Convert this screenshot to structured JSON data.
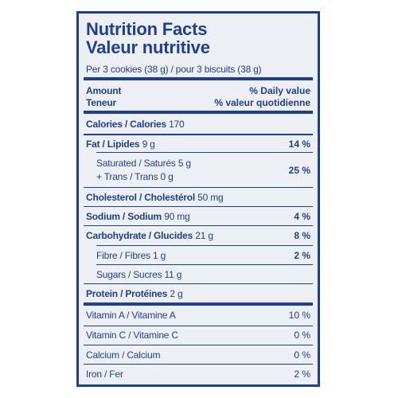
{
  "header": {
    "title": "Nutrition Facts",
    "title_fr": "Valeur nutritive",
    "serving": "Per 3 cookies (38 g) / pour 3 biscuits (38 g)"
  },
  "columns": {
    "amount": "Amount",
    "amount_fr": "Teneur",
    "dv": "% Daily value",
    "dv_fr": "% valeur quotidienne"
  },
  "rows": [
    {
      "name": "Calories / Calories",
      "amount": "170"
    },
    {
      "name": "Fat / Lipides",
      "amount": "9 g",
      "dv": "14 %"
    },
    {
      "name": "Saturated / Saturés 5 g",
      "name2": "+ Trans / Trans 0 g",
      "dv": "25 %"
    },
    {
      "name": "Cholesterol / Cholestérol",
      "amount": "50 mg"
    },
    {
      "name": "Sodium / Sodium",
      "amount": "90 mg",
      "dv": "4 %"
    },
    {
      "name": "Carbohydrate / Glucides",
      "amount": "21 g",
      "dv": "8 %"
    },
    {
      "name": "Fibre / Fibres 1 g",
      "dv": "2 %"
    },
    {
      "name": "Sugars / Sucres 11 g"
    },
    {
      "name": "Protein / Protéines",
      "amount": "2 g"
    },
    {
      "name": "Vitamin A / Vitamine A",
      "dv": "10 %"
    },
    {
      "name": "Vitamin C / Vitamine C",
      "dv": "0 %"
    },
    {
      "name": "Calcium / Calcium",
      "dv": "0 %"
    },
    {
      "name": "Iron / Fer",
      "dv": "2 %"
    }
  ]
}
